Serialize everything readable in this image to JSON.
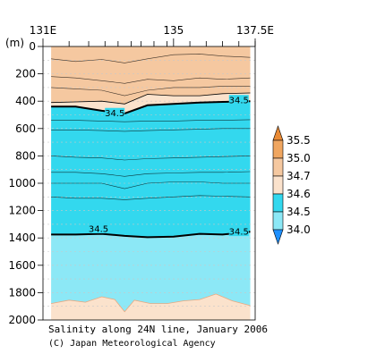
{
  "colors": {
    "band_35_0_35_5": "#f0a660",
    "band_34_7_35_0": "#f5c8a0",
    "band_34_6_34_7": "#fbe2cc",
    "band_34_5_34_6": "#33d8ee",
    "band_34_0_34_5": "#8ce8f6",
    "below_34_0": "#1e90ff",
    "contour": "#000000",
    "grid": "#c8c8c8"
  },
  "chart_data": {
    "type": "heatmap",
    "title": "Salinity along 24N line, January 2006",
    "credit": "(C) Japan Meteorological Agency",
    "xlabel": "",
    "ylabel": "(m)",
    "xlim": [
      131,
      137.5
    ],
    "ylim": [
      0,
      2000
    ],
    "x_ticks": [
      {
        "value": 131,
        "label": "131E"
      },
      {
        "value": 135,
        "label": "135"
      },
      {
        "value": 137.5,
        "label": "137.5E"
      }
    ],
    "station_ticks": [
      131.8,
      132.4,
      132.9,
      133.3,
      133.7,
      134.0,
      134.4,
      134.8,
      135.5,
      136.0,
      136.5,
      137.0,
      137.5
    ],
    "y_ticks": [
      0,
      200,
      400,
      600,
      800,
      1000,
      1200,
      1400,
      1600,
      1800,
      2000
    ],
    "colorbar": {
      "levels": [
        34.0,
        34.5,
        34.6,
        34.7,
        35.0,
        35.5
      ],
      "labels": [
        "34.0",
        "34.5",
        "34.6",
        "34.7",
        "35.0",
        "35.5"
      ],
      "extend": "both"
    },
    "contour_labels": [
      {
        "text": "34.5",
        "x": 133.2,
        "y": 495
      },
      {
        "text": "34.5",
        "x": 137.0,
        "y": 400
      },
      {
        "text": "34.5",
        "x": 132.7,
        "y": 1340
      },
      {
        "text": "34.5",
        "x": 137.0,
        "y": 1360
      }
    ],
    "data_x_range": [
      131.25,
      137.35
    ],
    "iso_34_6": {
      "x": [
        131.25,
        132.0,
        132.8,
        133.5,
        134.2,
        135.0,
        135.8,
        136.5,
        137.35
      ],
      "y": [
        410,
        405,
        400,
        420,
        350,
        360,
        360,
        345,
        340
      ]
    },
    "iso_34_5_upper": {
      "x": [
        131.25,
        132.0,
        132.8,
        133.5,
        134.2,
        135.0,
        135.8,
        136.5,
        137.35
      ],
      "y": [
        440,
        440,
        470,
        490,
        430,
        420,
        410,
        405,
        400
      ]
    },
    "iso_34_5_lower": {
      "x": [
        131.25,
        132.0,
        132.8,
        133.5,
        134.2,
        135.0,
        135.8,
        136.5,
        137.35
      ],
      "y": [
        1375,
        1375,
        1370,
        1385,
        1395,
        1390,
        1370,
        1375,
        1355
      ]
    },
    "bottom_34_6": {
      "x": [
        131.25,
        131.8,
        132.3,
        132.8,
        133.2,
        133.5,
        133.8,
        134.3,
        134.8,
        135.3,
        135.8,
        136.3,
        136.8,
        137.35
      ],
      "y": [
        1880,
        1855,
        1870,
        1830,
        1850,
        1940,
        1855,
        1880,
        1880,
        1860,
        1850,
        1810,
        1860,
        1895
      ]
    }
  }
}
